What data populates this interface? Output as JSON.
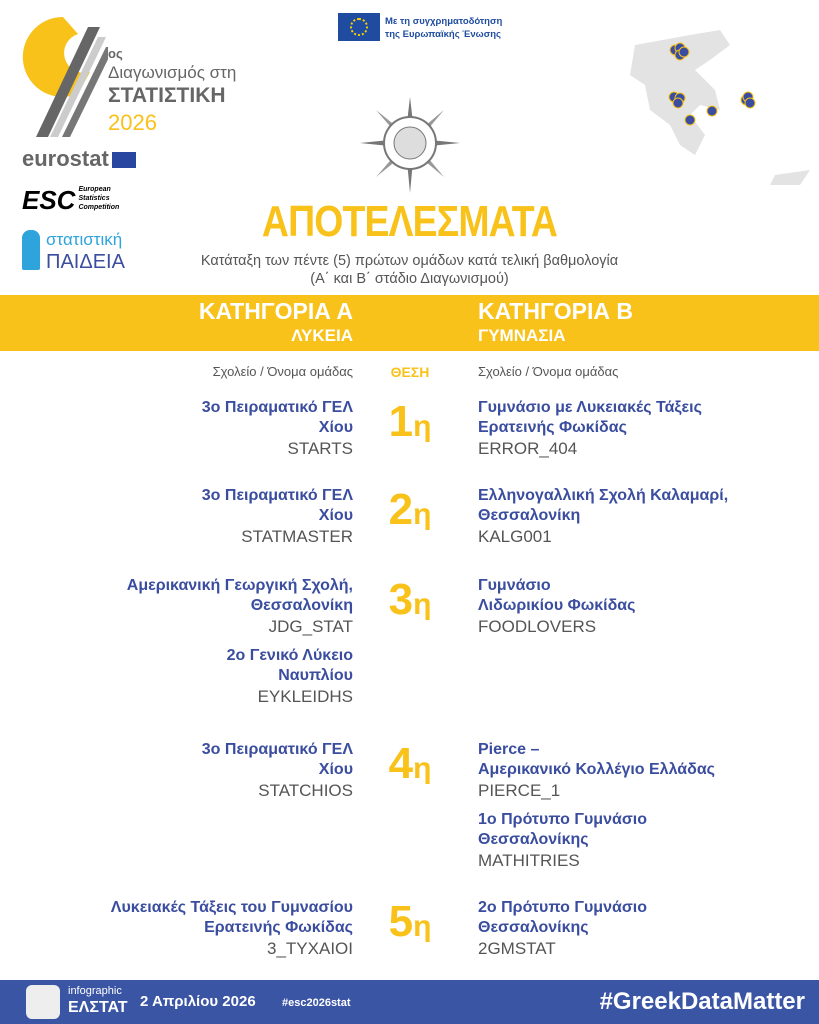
{
  "logo": {
    "ordinal": "ος",
    "line1": "Διαγωνισμός στη",
    "line2": "ΣΤΑΤΙΣΤΙΚΗ",
    "year": "2026"
  },
  "partners": {
    "eurostat": "eurostat",
    "esc": "European Statistics Competition",
    "paideia_1": "στατιστική",
    "paideia_2": "ΠΑΙΔΕΙΑ"
  },
  "eu_funding": {
    "line1": "Με τη συγχρηματοδότηση",
    "line2": "της Ευρωπαϊκής Ένωσης"
  },
  "title": "ΑΠΟΤΕΛΕΣΜΑΤΑ",
  "subtitle1": "Κατάταξη των πέντε (5) πρώτων ομάδων κατά τελική βαθμολογία",
  "subtitle2": "(Α΄ και Β΄ στάδιο Διαγωνισμού)",
  "colors": {
    "yellow": "#f8c21a",
    "blue": "#3a4d9f",
    "footer": "#3b55a5"
  },
  "categories": {
    "a": {
      "title": "ΚΑΤΗΓΟΡΙΑ Α",
      "sub": "ΛΥΚΕΙΑ"
    },
    "b": {
      "title": "ΚΑΤΗΓΟΡΙΑ Β",
      "sub": "ΓΥΜΝΑΣΙΑ"
    }
  },
  "col_header": "Σχολείο / Όνομα ομάδας",
  "rank_header": "ΘΕΣΗ",
  "rows": [
    {
      "rank": "1",
      "suffix": "η",
      "a": [
        {
          "school": "3ο Πειραματικό ΓΕΛ\nΧίου",
          "team": "STARTS"
        }
      ],
      "b": [
        {
          "school": "Γυμνάσιο με Λυκειακές Τάξεις\nΕρατεινής Φωκίδας",
          "team": "ERROR_404"
        }
      ]
    },
    {
      "rank": "2",
      "suffix": "η",
      "a": [
        {
          "school": "3ο Πειραματικό ΓΕΛ\nΧίου",
          "team": "STATMASTER"
        }
      ],
      "b": [
        {
          "school": "Ελληνογαλλική Σχολή Καλαμαρί,\nΘεσσαλονίκη",
          "team": "KALG001"
        }
      ]
    },
    {
      "rank": "3",
      "suffix": "η",
      "a": [
        {
          "school": "Αμερικανική Γεωργική Σχολή,\nΘεσσαλονίκη",
          "team": "JDG_STAT"
        },
        {
          "school": "2ο Γενικό Λύκειο\nΝαυπλίου",
          "team": "EYKLEIDHS"
        }
      ],
      "b": [
        {
          "school": "Γυμνάσιο\nΛιδωρικίου Φωκίδας",
          "team": "FOODLOVERS"
        }
      ]
    },
    {
      "rank": "4",
      "suffix": "η",
      "a": [
        {
          "school": "3ο Πειραματικό ΓΕΛ\nΧίου",
          "team": "STATCHIOS"
        }
      ],
      "b": [
        {
          "school": "Pierce –\nΑμερικανικό Κολλέγιο Ελλάδας",
          "team": "PIERCE_1"
        },
        {
          "school": "1ο Πρότυπο Γυμνάσιο\nΘεσσαλονίκης",
          "team": "MATHITRIES"
        }
      ]
    },
    {
      "rank": "5",
      "suffix": "η",
      "a": [
        {
          "school": "Λυκειακές Τάξεις του Γυμνασίου\nΕρατεινής Φωκίδας",
          "team": "3_TYXAIOI"
        }
      ],
      "b": [
        {
          "school": "2ο Πρότυπο Γυμνάσιο\nΘεσσαλονίκης",
          "team": "2GMSTAT"
        }
      ]
    }
  ],
  "footer": {
    "brand_small": "infographic",
    "brand": "ΕΛΣΤΑΤ",
    "date": "2 Απριλίου 2026",
    "hashtag_small": "#esc2026stat",
    "hashtag": "#GreekDataMatter"
  }
}
